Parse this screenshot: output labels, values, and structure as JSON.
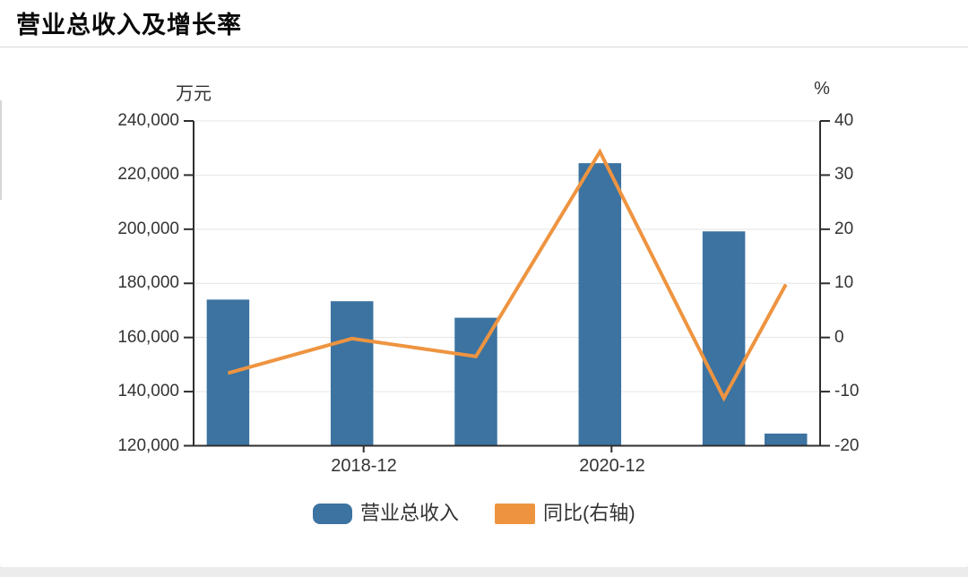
{
  "header": {
    "title": "营业总收入及增长率"
  },
  "chart_data": {
    "type": "combo-bar-line",
    "title": "营业总收入及增长率",
    "grid": true,
    "legend_position": "bottom",
    "left_axis": {
      "title": "万元",
      "min": 120000,
      "max": 240000,
      "tick_step": 20000,
      "tick_labels": [
        "240,000",
        "220,000",
        "200,000",
        "180,000",
        "160,000",
        "140,000",
        "120,000"
      ]
    },
    "right_axis": {
      "title": "%",
      "min": -20,
      "max": 40,
      "tick_step": 10,
      "tick_labels": [
        "40",
        "30",
        "20",
        "10",
        "0",
        "-10",
        "-20"
      ]
    },
    "x_units": [
      0,
      1,
      2,
      3,
      4,
      4.5
    ],
    "x_axis": {
      "visible_ticks": [
        {
          "label": "2018-12",
          "x_unit": 1
        },
        {
          "label": "2020-12",
          "x_unit": 3
        }
      ]
    },
    "series": [
      {
        "name": "营业总收入",
        "type": "bar",
        "axis": "left",
        "unit": "万元",
        "color": "#3c73a1",
        "values": [
          174000,
          173400,
          167300,
          224400,
          199200,
          124500
        ]
      },
      {
        "name": "同比(右轴)",
        "type": "line",
        "axis": "right",
        "unit": "%",
        "color": "#ee9440",
        "values": [
          -6.6,
          -0.2,
          -3.5,
          34.3,
          -11.2,
          9.8
        ]
      }
    ]
  },
  "legend": {
    "items": [
      {
        "label": "营业总收入",
        "color": "#3c73a1"
      },
      {
        "label": "同比(右轴)",
        "color": "#ee9440"
      }
    ]
  },
  "style": {
    "axis_line_color": "#2f2f2f",
    "grid_line_color": "#e5e5e5",
    "divider_color": "#d8d8d8",
    "footer_color": "#ececec"
  }
}
